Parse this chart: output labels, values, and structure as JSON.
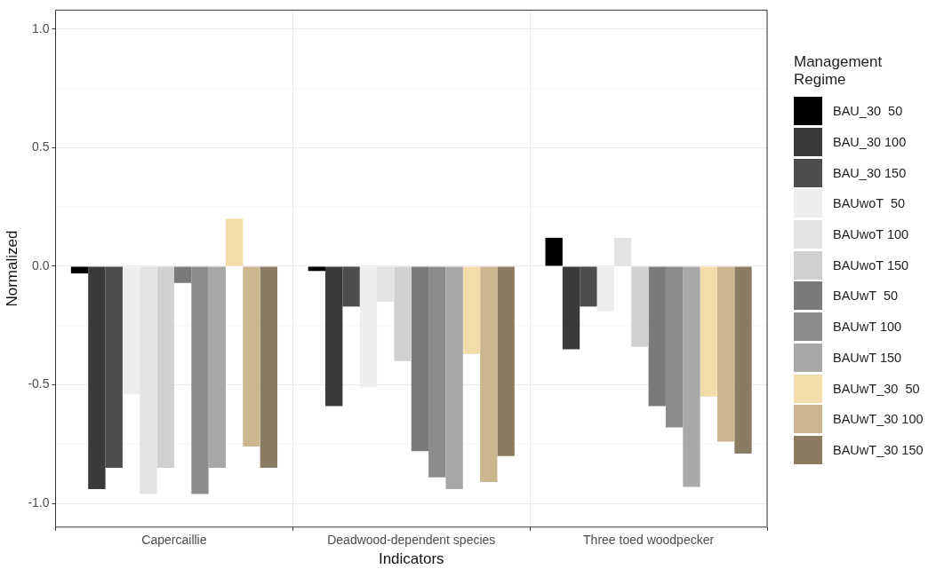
{
  "chart_data": {
    "type": "bar",
    "xlabel": "Indicators",
    "ylabel": "Normalized",
    "legend_title": "Management Regime",
    "legend": "right",
    "grid": true,
    "categories": [
      "Capercaillie",
      "Deadwood-dependent species",
      "Three toed woodpecker"
    ],
    "ylim": [
      -1.1,
      1.08
    ],
    "yticks": [
      {
        "value": -1,
        "label": "-1.0"
      },
      {
        "value": -0.5,
        "label": "-0.5"
      },
      {
        "value": 0,
        "label": "0.0"
      },
      0.5,
      {
        "value": 1,
        "label": "1.0"
      }
    ],
    "series": [
      {
        "name": "BAU_30  50",
        "color": "#000000",
        "values": [
          -0.03,
          -0.02,
          0.12
        ]
      },
      {
        "name": "BAU_30 100",
        "color": "#3a3a3a",
        "values": [
          -0.94,
          -0.59,
          -0.35
        ]
      },
      {
        "name": "BAU_30 150",
        "color": "#4d4d4d",
        "values": [
          -0.85,
          -0.17,
          -0.17
        ]
      },
      {
        "name": "BAUwoT  50",
        "color": "#eeeeee",
        "values": [
          -0.54,
          -0.51,
          -0.19
        ]
      },
      {
        "name": "BAUwoT 100",
        "color": "#e3e3e3",
        "values": [
          -0.96,
          -0.15,
          0.12
        ]
      },
      {
        "name": "BAUwoT 150",
        "color": "#d0d0d0",
        "values": [
          -0.85,
          -0.4,
          -0.34
        ]
      },
      {
        "name": "BAUwT  50",
        "color": "#7a7a7a",
        "values": [
          -0.07,
          -0.78,
          -0.59
        ]
      },
      {
        "name": "BAUwT 100",
        "color": "#8c8c8c",
        "values": [
          -0.96,
          -0.89,
          -0.68
        ]
      },
      {
        "name": "BAUwT 150",
        "color": "#a8a8a8",
        "values": [
          -0.85,
          -0.94,
          -0.93
        ]
      },
      {
        "name": "BAUwT_30  50",
        "color": "#f2dcaa",
        "values": [
          0.2,
          -0.37,
          -0.55
        ]
      },
      {
        "name": "BAUwT_30 100",
        "color": "#cbb68f",
        "values": [
          -0.76,
          -0.91,
          -0.74
        ]
      },
      {
        "name": "BAUwT_30 150",
        "color": "#8a7c62",
        "values": [
          -0.85,
          -0.8,
          -0.79
        ]
      }
    ]
  }
}
